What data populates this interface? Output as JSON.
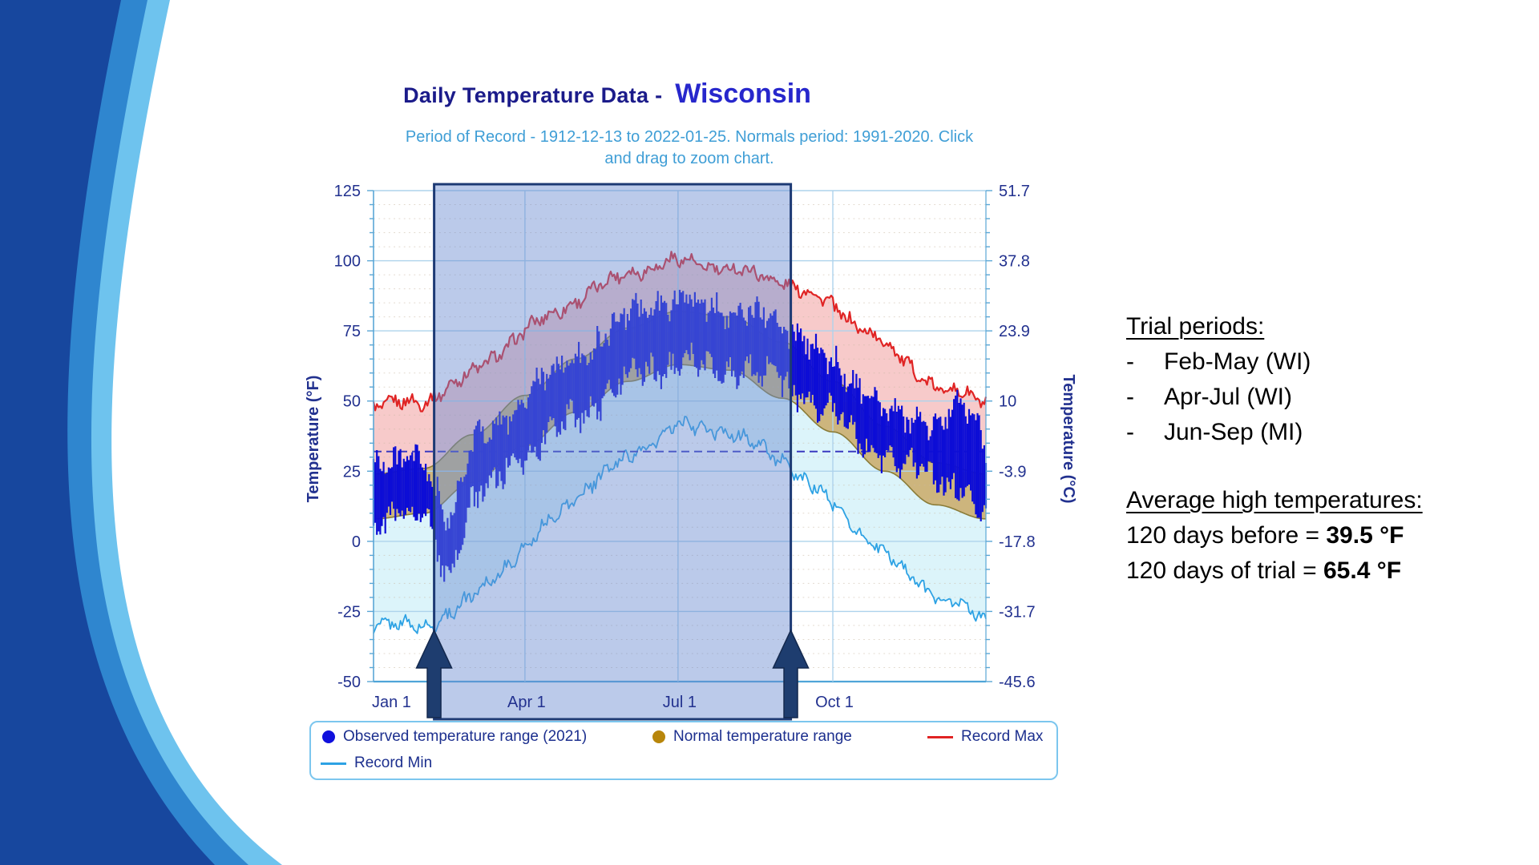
{
  "header": {
    "title_prefix": "Daily Temperature Data - ",
    "title_location": "Wisconsin",
    "subtitle_line1": "Period of Record - 1912-12-13 to 2022-01-25. Normals period: 1991-2020. Click",
    "subtitle_line2": "and drag to zoom chart."
  },
  "notes": {
    "trial_header": "Trial periods:",
    "bullet_char": "-",
    "trial_items": [
      "Feb-May (WI)",
      "Apr-Jul (WI)",
      "Jun-Sep (MI)"
    ],
    "avg_header": "Average high temperatures:",
    "avg_lines": [
      {
        "label": "120 days before = ",
        "value": "39.5 °F"
      },
      {
        "label": "120 days of trial = ",
        "value": "65.4 °F"
      }
    ]
  },
  "legend": {
    "items": [
      {
        "marker": "circle",
        "color": "#1010dd",
        "label": "Observed temperature range (2021)"
      },
      {
        "marker": "circle",
        "color": "#b8860b",
        "label": "Normal temperature range"
      },
      {
        "marker": "line",
        "color": "#e02424",
        "label": "Record Max"
      },
      {
        "marker": "line",
        "color": "#2da2e4",
        "label": "Record Min"
      }
    ]
  },
  "chart_data": {
    "type": "composite: daily observed temperature-range bars over record/normal area bands",
    "title": "Daily Temperature Data - Wisconsin",
    "x": {
      "tick_labels": [
        "Jan 1",
        "Apr 1",
        "Jul 1",
        "Oct 1"
      ],
      "tick_days": [
        0,
        90,
        181,
        273
      ],
      "days": 365
    },
    "y_left": {
      "label": "Temperature (°F)",
      "ticks": [
        125,
        100,
        75,
        50,
        25,
        0,
        -25,
        -50
      ],
      "min": -50,
      "max": 125,
      "minor_step": 5
    },
    "y_right": {
      "label": "Temperature (°C)",
      "tick_labels": [
        "51.7",
        "37.8",
        "23.9",
        "10",
        "-3.9",
        "-17.8",
        "-31.7",
        "-45.6"
      ]
    },
    "grid": true,
    "freezing_line_f": 32,
    "selection_window": {
      "start_day_of_year": 36,
      "end_day_of_year": 248
    },
    "record_max": {
      "anchor_days": [
        0,
        30,
        59,
        90,
        120,
        151,
        181,
        212,
        243,
        273,
        304,
        334,
        364
      ],
      "values_f": [
        48,
        50,
        60,
        75,
        86,
        96,
        100,
        97,
        93,
        84,
        70,
        55,
        50
      ],
      "noise_amp_f": 3.3
    },
    "record_min": {
      "anchor_days": [
        0,
        30,
        59,
        90,
        120,
        151,
        181,
        212,
        243,
        273,
        304,
        334,
        364
      ],
      "values_f": [
        -29,
        -31,
        -20,
        -2,
        16,
        30,
        41,
        39,
        29,
        13,
        -5,
        -19,
        -28
      ],
      "noise_amp_f": 3.3
    },
    "normal_high": {
      "anchor_days": [
        0,
        30,
        59,
        90,
        120,
        151,
        181,
        212,
        243,
        273,
        304,
        334,
        364
      ],
      "values_f": [
        24,
        26,
        38,
        52,
        65,
        76,
        82,
        80,
        71,
        57,
        41,
        28,
        24
      ]
    },
    "normal_low": {
      "anchor_days": [
        0,
        30,
        59,
        90,
        120,
        151,
        181,
        212,
        243,
        273,
        304,
        334,
        364
      ],
      "values_f": [
        8,
        10,
        21,
        34,
        46,
        57,
        63,
        61,
        51,
        39,
        25,
        13,
        8
      ]
    },
    "observed_2021": {
      "anchor_days": [
        0,
        15,
        31,
        38,
        45,
        52,
        59,
        74,
        90,
        105,
        120,
        135,
        151,
        166,
        181,
        196,
        212,
        227,
        243,
        258,
        273,
        288,
        304,
        319,
        334,
        349,
        356,
        364
      ],
      "high_f": [
        30,
        28,
        26,
        18,
        8,
        20,
        34,
        42,
        52,
        58,
        66,
        72,
        80,
        85,
        85,
        84,
        84,
        80,
        78,
        72,
        62,
        56,
        46,
        42,
        44,
        50,
        44,
        32
      ],
      "low_f": [
        8,
        10,
        8,
        -2,
        -14,
        2,
        14,
        22,
        32,
        38,
        45,
        50,
        58,
        62,
        63,
        62,
        62,
        60,
        57,
        52,
        44,
        38,
        30,
        26,
        24,
        20,
        10,
        10
      ],
      "noise_amp_f": 7
    }
  },
  "colors": {
    "slide_bg": "#ffffff",
    "swoosh_dark": "#17479e",
    "swoosh_mid": "#2f86cf",
    "swoosh_light": "#6ec3ee",
    "title_prefix": "#1b1b8a",
    "title_location": "#2727cc",
    "subtitle": "#3f9ed6",
    "axis_text": "#22318f",
    "axis_line": "#5aa7d6",
    "grid_major": "#aed3ec",
    "grid_bottom": "#4fa5d8",
    "grid_minor": "#c9b9a4",
    "record_max_line": "#e02424",
    "record_max_fill": "#f7caca",
    "normal_fill": "#cdb57d",
    "normal_edge": "#8a7c38",
    "record_min_line": "#2da2e4",
    "record_min_fill": "#dcf4fa",
    "observed_bar": "#0d0dd6",
    "freezing_dash": "#3a3ac0",
    "selection_fill": "rgba(104,138,208,0.45)",
    "selection_border": "#1d3a74",
    "arrow_fill": "#1e3d6f",
    "arrow_edge": "#14294e",
    "legend_border": "#7cc6ee",
    "legend_text": "#1c2f8e"
  }
}
